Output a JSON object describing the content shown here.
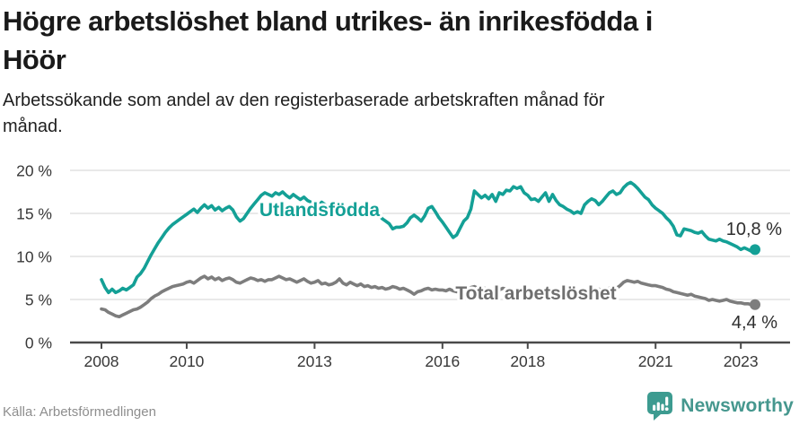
{
  "header": {
    "title_line1": "Högre arbetslöshet bland utrikes- än inrikesfödda i",
    "title_line2": "Höör",
    "subtitle_line1": "Arbetssökande som andel av den registerbaserade arbetskraften månad för",
    "subtitle_line2": "månad."
  },
  "chart_data": {
    "type": "line",
    "x": {
      "start": "2008-01",
      "end": "2023-05",
      "frequency": "monthly"
    },
    "x_ticks": [
      2008,
      2010,
      2013,
      2016,
      2018,
      2021,
      2023
    ],
    "ylim": [
      0,
      20
    ],
    "y_ticks": [
      0,
      5,
      10,
      15,
      20
    ],
    "y_tick_labels": [
      "0 %",
      "5 %",
      "10 %",
      "15 %",
      "20 %"
    ],
    "grid": "horizontal",
    "colors": {
      "axis": "#4a4a4a",
      "gridline": "#dcdcdc",
      "tick_label": "#383838",
      "value_label": "#2e2e2e"
    },
    "series": [
      {
        "key": "utlandsfodda",
        "name": "Utlandsfödda",
        "color": "#14a096",
        "label_color": "#14a096",
        "end_label": "10,8 %",
        "end_value": 10.8,
        "values": [
          7.3,
          6.4,
          5.8,
          6.2,
          5.8,
          6.0,
          6.3,
          6.1,
          6.4,
          6.7,
          7.6,
          8.0,
          8.6,
          9.4,
          10.2,
          10.9,
          11.6,
          12.2,
          12.8,
          13.3,
          13.7,
          14.0,
          14.3,
          14.6,
          14.9,
          15.2,
          15.5,
          15.1,
          15.6,
          16.0,
          15.6,
          15.9,
          15.4,
          15.7,
          15.3,
          15.6,
          15.8,
          15.4,
          14.6,
          14.1,
          14.4,
          15.0,
          15.6,
          16.1,
          16.6,
          17.1,
          17.4,
          17.2,
          17.0,
          17.4,
          17.2,
          17.5,
          17.1,
          16.8,
          17.2,
          16.9,
          16.6,
          16.9,
          16.5,
          16.3,
          16.2,
          15.9,
          16.3,
          16.0,
          15.7,
          16.1,
          15.8,
          15.5,
          15.9,
          15.6,
          15.3,
          15.4,
          15.2,
          15.5,
          15.1,
          14.8,
          15.0,
          14.7,
          14.9,
          14.4,
          14.1,
          13.8,
          13.2,
          13.4,
          13.4,
          13.5,
          13.9,
          14.5,
          14.8,
          14.5,
          14.1,
          14.7,
          15.6,
          15.8,
          15.2,
          14.5,
          14.0,
          13.4,
          12.8,
          12.2,
          12.5,
          13.3,
          14.1,
          14.5,
          15.5,
          17.6,
          17.2,
          16.8,
          17.1,
          16.7,
          17.2,
          16.4,
          17.4,
          17.2,
          17.7,
          17.6,
          18.1,
          17.9,
          18.1,
          17.4,
          17.1,
          16.6,
          16.7,
          16.4,
          16.9,
          17.4,
          16.4,
          17.2,
          16.5,
          16.0,
          15.8,
          15.5,
          15.3,
          15.0,
          15.2,
          15.0,
          16.0,
          16.4,
          16.7,
          16.5,
          16.0,
          16.4,
          16.9,
          17.4,
          17.6,
          17.2,
          17.4,
          18.0,
          18.4,
          18.6,
          18.3,
          17.9,
          17.4,
          16.9,
          16.6,
          16.0,
          15.6,
          15.3,
          15.0,
          14.5,
          14.1,
          13.5,
          12.5,
          12.4,
          13.2,
          13.1,
          13.0,
          12.8,
          12.7,
          12.9,
          12.4,
          12.0,
          11.9,
          11.8,
          12.0,
          11.8,
          11.7,
          11.5,
          11.3,
          11.1,
          10.8,
          11.0,
          10.8,
          10.6,
          10.8
        ]
      },
      {
        "key": "total",
        "name": "Total arbetslöshet",
        "color": "#7d7d7d",
        "label_color": "#6f6f6f",
        "end_label": "4,4 %",
        "end_value": 4.4,
        "values": [
          3.9,
          3.8,
          3.5,
          3.3,
          3.1,
          3.0,
          3.2,
          3.4,
          3.6,
          3.8,
          3.9,
          4.1,
          4.4,
          4.7,
          5.1,
          5.4,
          5.6,
          5.9,
          6.1,
          6.3,
          6.5,
          6.6,
          6.7,
          6.8,
          7.0,
          7.1,
          6.9,
          7.2,
          7.5,
          7.7,
          7.4,
          7.6,
          7.3,
          7.5,
          7.2,
          7.4,
          7.5,
          7.3,
          7.0,
          6.9,
          7.1,
          7.3,
          7.5,
          7.4,
          7.2,
          7.3,
          7.1,
          7.3,
          7.3,
          7.5,
          7.7,
          7.5,
          7.3,
          7.4,
          7.2,
          7.0,
          7.2,
          7.4,
          7.1,
          6.9,
          7.0,
          7.2,
          6.8,
          6.9,
          6.7,
          6.8,
          7.0,
          7.4,
          6.9,
          6.7,
          7.0,
          6.8,
          6.6,
          6.8,
          6.5,
          6.6,
          6.4,
          6.5,
          6.3,
          6.4,
          6.2,
          6.3,
          6.5,
          6.4,
          6.2,
          6.3,
          6.1,
          5.9,
          5.6,
          5.9,
          6.0,
          6.2,
          6.3,
          6.1,
          6.2,
          6.1,
          6.1,
          6.0,
          6.2,
          6.0,
          5.9,
          6.1,
          6.0,
          6.2,
          6.4,
          6.5,
          6.3,
          6.2,
          6.3,
          6.1,
          6.2,
          6.0,
          6.1,
          6.3,
          6.2,
          6.0,
          6.1,
          6.2,
          6.0,
          6.1,
          6.0,
          6.1,
          5.9,
          6.0,
          6.1,
          6.0,
          5.8,
          5.9,
          6.0,
          5.9,
          5.8,
          5.9,
          5.8,
          5.9,
          6.0,
          5.9,
          6.0,
          6.1,
          6.0,
          6.1,
          6.2,
          6.1,
          6.2,
          6.3,
          6.4,
          6.3,
          6.6,
          7.0,
          7.2,
          7.1,
          7.0,
          7.1,
          6.9,
          6.8,
          6.7,
          6.6,
          6.6,
          6.5,
          6.4,
          6.2,
          6.1,
          5.9,
          5.8,
          5.7,
          5.6,
          5.5,
          5.6,
          5.4,
          5.3,
          5.2,
          5.1,
          4.9,
          5.0,
          4.9,
          4.8,
          4.9,
          5.0,
          4.8,
          4.7,
          4.6,
          4.6,
          4.5,
          4.5,
          4.4,
          4.4
        ]
      }
    ]
  },
  "footer": {
    "source": "Källa: Arbetsförmedlingen",
    "brand": "Newsworthy",
    "icon": "newsworthy-bars-icon"
  }
}
